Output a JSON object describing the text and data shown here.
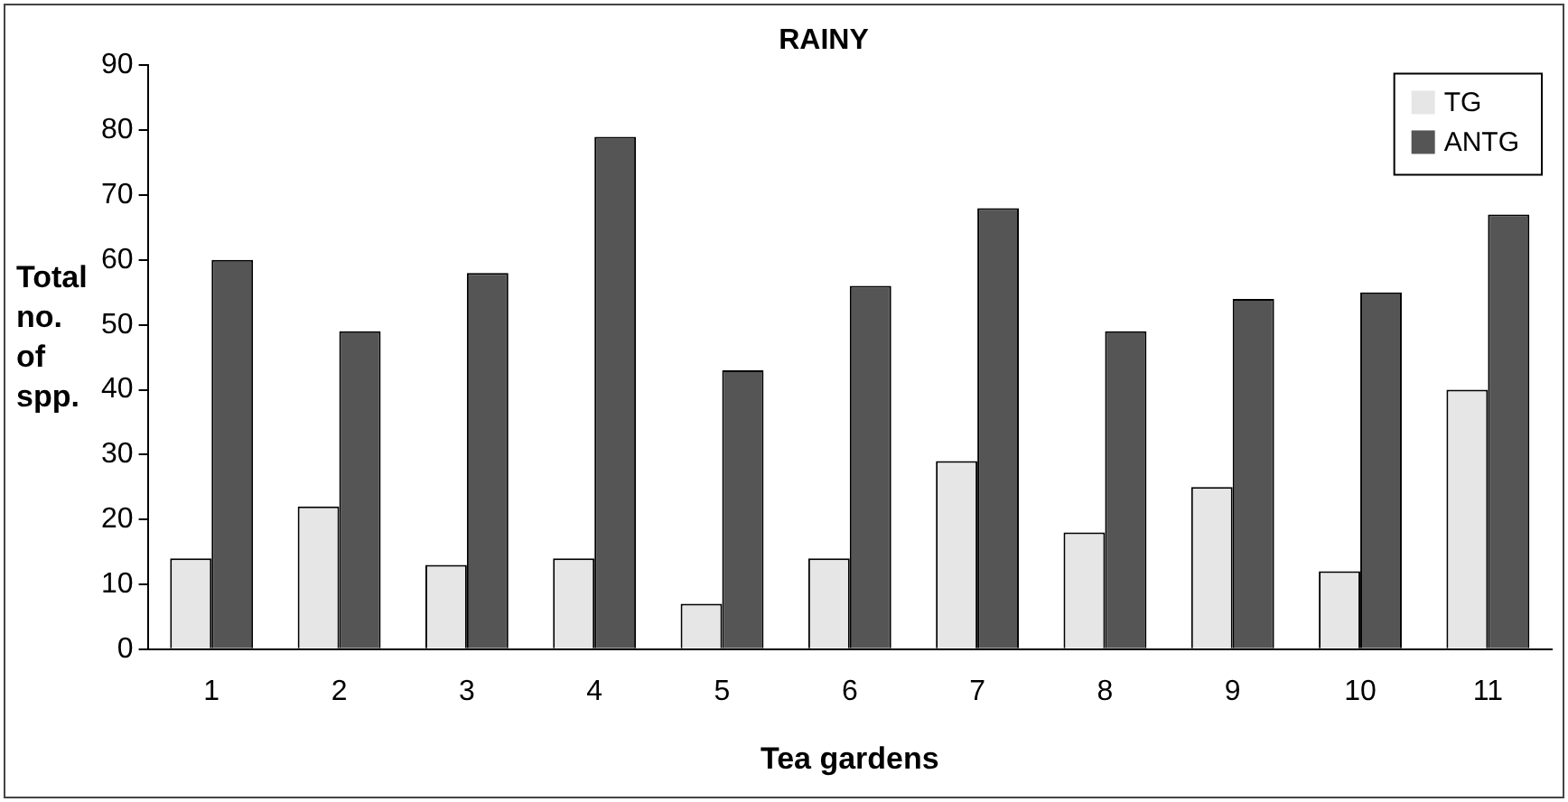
{
  "chart_data": {
    "type": "bar",
    "title": "RAINY",
    "xlabel": "Tea gardens",
    "ylabel": "Total no. of spp.",
    "categories": [
      "1",
      "2",
      "3",
      "4",
      "5",
      "6",
      "7",
      "8",
      "9",
      "10",
      "11"
    ],
    "series": [
      {
        "name": "TG",
        "color": "#e6e6e6",
        "values": [
          14,
          22,
          13,
          14,
          7,
          14,
          29,
          18,
          25,
          12,
          40
        ]
      },
      {
        "name": "ANTG",
        "color": "#555555",
        "values": [
          60,
          49,
          58,
          79,
          43,
          56,
          68,
          49,
          54,
          55,
          67
        ]
      }
    ],
    "ylim": [
      0,
      90
    ],
    "yticks": [
      0,
      10,
      20,
      30,
      40,
      50,
      60,
      70,
      80,
      90
    ],
    "grid": false,
    "legend": "top right"
  }
}
